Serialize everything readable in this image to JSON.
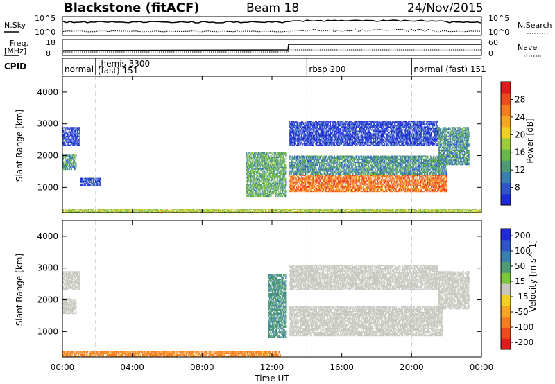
{
  "header": {
    "title": "Blackstone (fitACF)",
    "beam": "Beam 18",
    "date": "24/Nov/2015"
  },
  "noise_panel": {
    "left_label": "N.Sky",
    "left_ticks": [
      "10^5",
      "10^0"
    ],
    "right_label": "N.Search",
    "right_ticks": [
      "10^5",
      "10^0"
    ]
  },
  "freq_panel": {
    "left_label_line1": "Freq.",
    "left_label_line2": "[MHz]",
    "left_ticks": [
      "18",
      "8"
    ],
    "right_label": "Nave",
    "right_ticks": [
      "60",
      "0"
    ]
  },
  "cpid": {
    "label": "CPID",
    "segments": [
      {
        "start_hour": 0.0,
        "text": "normal"
      },
      {
        "start_hour": 1.9,
        "text": "themis 3300",
        "text2": "(fast) 151"
      },
      {
        "start_hour": 14.0,
        "text": "rbsp 200"
      },
      {
        "start_hour": 20.0,
        "text": "normal (fast) 151"
      }
    ]
  },
  "colors": {
    "power_scale": [
      "#1f2bd8",
      "#2f55c8",
      "#3b7fb0",
      "#4f9a74",
      "#6ab84a",
      "#9ccc3c",
      "#f0d020",
      "#f5a623",
      "#f57c1f",
      "#ef4a1e",
      "#e01b1b"
    ],
    "velocity_scale": [
      "#1f2bd8",
      "#2f55c8",
      "#3b7fb0",
      "#4f9a74",
      "#7cc63a",
      "#c8c8c0",
      "#f0d020",
      "#f5a623",
      "#f57c1f",
      "#ef4a1e",
      "#e01b1b"
    ],
    "ground_scatter": "#b4b4ac"
  },
  "chart_data": [
    {
      "type": "heatmap",
      "name": "power",
      "ylabel": "Slant Range [km]",
      "yticks": [
        "1000",
        "2000",
        "3000",
        "4000"
      ],
      "ylim": [
        200,
        4500
      ],
      "xlim_hours": [
        0,
        24
      ],
      "colorbar_label": "Power [dB]",
      "colorbar_ticks": [
        "8",
        "12",
        "16",
        "20",
        "24",
        "28"
      ],
      "colorbar_range": [
        4,
        32
      ],
      "regions": [
        {
          "t0": 0.0,
          "t1": 0.8,
          "r0": 1550,
          "r1": 2050,
          "value": 12
        },
        {
          "t0": 0.0,
          "t1": 1.0,
          "r0": 2300,
          "r1": 2900,
          "value": 6
        },
        {
          "t0": 1.0,
          "t1": 2.2,
          "r0": 1050,
          "r1": 1300,
          "value": 6
        },
        {
          "t0": 10.5,
          "t1": 12.8,
          "r0": 700,
          "r1": 2100,
          "value": 14
        },
        {
          "t0": 13.0,
          "t1": 22.0,
          "r0": 850,
          "r1": 1400,
          "value": 26
        },
        {
          "t0": 13.0,
          "t1": 22.0,
          "r0": 1400,
          "r1": 2000,
          "value": 12
        },
        {
          "t0": 13.0,
          "t1": 21.5,
          "r0": 2300,
          "r1": 3100,
          "value": 6
        },
        {
          "t0": 21.5,
          "t1": 23.3,
          "r0": 1700,
          "r1": 2900,
          "value": 12
        },
        {
          "t0": 0.0,
          "t1": 24.0,
          "r0": 200,
          "r1": 320,
          "value": 18
        }
      ]
    },
    {
      "type": "heatmap",
      "name": "velocity",
      "ylabel": "Slant Range [km]",
      "yticks": [
        "1000",
        "2000",
        "3000",
        "4000"
      ],
      "ylim": [
        200,
        4500
      ],
      "xlabel": "Time UT",
      "xticks": [
        "00:00",
        "04:00",
        "08:00",
        "12:00",
        "16:00",
        "20:00",
        "00:00"
      ],
      "xlim_hours": [
        0,
        24
      ],
      "colorbar_label": "Velocity [m s^-1]",
      "colorbar_ticks": [
        "200",
        "100",
        "50",
        "15",
        "-15",
        "-50",
        "-100",
        "-200"
      ],
      "regions": [
        {
          "t0": 0.0,
          "t1": 0.8,
          "r0": 1550,
          "r1": 2050,
          "value": 0
        },
        {
          "t0": 0.0,
          "t1": 1.0,
          "r0": 2300,
          "r1": 2900,
          "value": 0
        },
        {
          "t0": 11.8,
          "t1": 12.8,
          "r0": 800,
          "r1": 2800,
          "value": 30
        },
        {
          "t0": 13.0,
          "t1": 21.8,
          "r0": 850,
          "r1": 1800,
          "value": 0
        },
        {
          "t0": 13.0,
          "t1": 21.5,
          "r0": 2300,
          "r1": 3100,
          "value": 0
        },
        {
          "t0": 21.5,
          "t1": 23.3,
          "r0": 1700,
          "r1": 2900,
          "value": 0
        },
        {
          "t0": 0.0,
          "t1": 12.5,
          "r0": 200,
          "r1": 380,
          "value": -30
        }
      ]
    }
  ]
}
